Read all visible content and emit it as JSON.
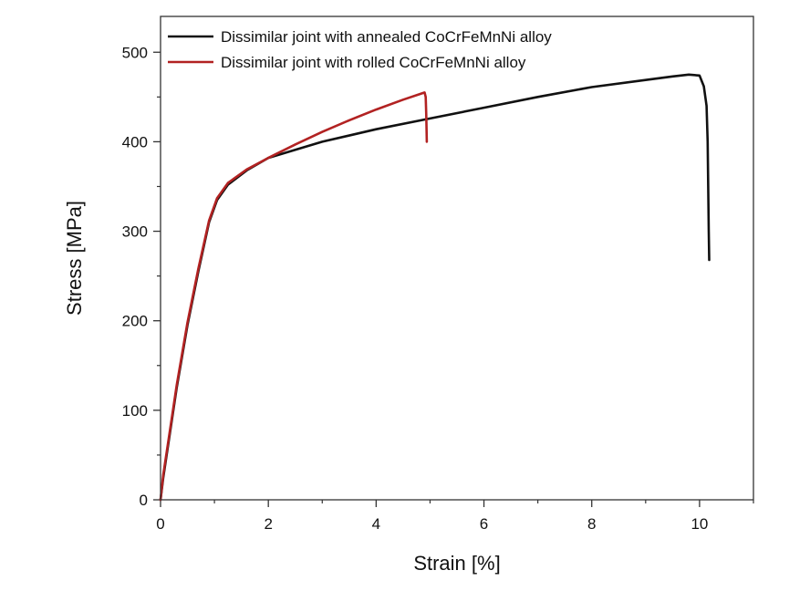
{
  "chart_data": {
    "type": "line",
    "title": "",
    "xlabel": "Strain [%]",
    "ylabel": "Stress [MPa]",
    "xlim": [
      0,
      11
    ],
    "ylim": [
      0,
      540
    ],
    "xticks": [
      0,
      2,
      4,
      6,
      8,
      10
    ],
    "yticks": [
      0,
      100,
      200,
      300,
      400,
      500
    ],
    "x_minor_step": 1,
    "y_minor_step": 50,
    "grid": false,
    "legend_position": "top-left",
    "series": [
      {
        "name": "Dissimilar joint with annealed CoCrFeMnNi alloy",
        "color": "#111111",
        "points": [
          [
            0,
            0
          ],
          [
            0.05,
            25
          ],
          [
            0.15,
            65
          ],
          [
            0.3,
            125
          ],
          [
            0.5,
            195
          ],
          [
            0.7,
            255
          ],
          [
            0.9,
            310
          ],
          [
            1.05,
            335
          ],
          [
            1.25,
            352
          ],
          [
            1.6,
            368
          ],
          [
            2.0,
            382
          ],
          [
            3.0,
            400
          ],
          [
            4.0,
            414
          ],
          [
            5.0,
            426
          ],
          [
            6.0,
            438
          ],
          [
            7.0,
            450
          ],
          [
            8.0,
            461
          ],
          [
            9.0,
            469
          ],
          [
            9.5,
            473
          ],
          [
            9.8,
            475
          ],
          [
            10.0,
            474
          ],
          [
            10.08,
            462
          ],
          [
            10.13,
            440
          ],
          [
            10.15,
            400
          ],
          [
            10.16,
            350
          ],
          [
            10.17,
            300
          ],
          [
            10.18,
            268
          ]
        ]
      },
      {
        "name": "Dissimilar joint with rolled CoCrFeMnNi alloy",
        "color": "#b22222",
        "points": [
          [
            0,
            0
          ],
          [
            0.05,
            28
          ],
          [
            0.15,
            68
          ],
          [
            0.3,
            128
          ],
          [
            0.5,
            198
          ],
          [
            0.7,
            258
          ],
          [
            0.9,
            312
          ],
          [
            1.05,
            337
          ],
          [
            1.25,
            354
          ],
          [
            1.6,
            369
          ],
          [
            2.0,
            382
          ],
          [
            2.5,
            397
          ],
          [
            3.0,
            411
          ],
          [
            3.5,
            424
          ],
          [
            4.0,
            436
          ],
          [
            4.5,
            447
          ],
          [
            4.8,
            453
          ],
          [
            4.9,
            455
          ],
          [
            4.92,
            450
          ],
          [
            4.93,
            430
          ],
          [
            4.94,
            400
          ]
        ]
      }
    ]
  }
}
